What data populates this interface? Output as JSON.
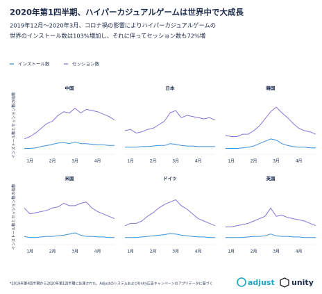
{
  "header": {
    "title": "2020年第1四半期、ハイパーカジュアルゲームは世界中で大成長",
    "subtitle": [
      "2019年12月〜2020年3月、コロナ禍の影響によりハイパーカジュアルゲームの",
      "世界のインストール数は103%増加し、それに伴ってセッション数も72%増"
    ]
  },
  "y_axis_label": "インストール数とセッション数の指数",
  "footnote": "*2019年第4四半期から2020年第1四半期に計測された、AdjustのシステムおよびUnity広告キャンペーンのアプリデータに基づく",
  "logos": [
    "adjust",
    "unity"
  ],
  "chart_data": [
    {
      "type": "line",
      "title": "中国",
      "ylim": [
        0,
        100
      ],
      "categories": [
        null,
        "1月",
        null,
        null,
        null,
        "2月",
        null,
        null,
        null,
        "3月",
        null,
        null,
        null,
        "4月",
        null,
        null,
        null
      ],
      "series": [
        {
          "name": "インストール数",
          "color": "#3a8fd9",
          "values": [
            10,
            10,
            11,
            13,
            15,
            17,
            19,
            20,
            18,
            21,
            18,
            18,
            17,
            16,
            16,
            15,
            15
          ]
        },
        {
          "name": "セッション数",
          "color": "#8a6fd6",
          "values": [
            26,
            30,
            36,
            44,
            52,
            56,
            66,
            72,
            70,
            78,
            70,
            76,
            74,
            72,
            68,
            64,
            58
          ]
        }
      ]
    },
    {
      "type": "line",
      "title": "日本",
      "ylim": [
        0,
        100
      ],
      "categories": [
        null,
        "1月",
        null,
        null,
        null,
        "2月",
        null,
        null,
        null,
        "3月",
        null,
        null,
        null,
        "4月",
        null,
        null,
        null
      ],
      "series": [
        {
          "name": "インストール数",
          "color": "#3a8fd9",
          "values": [
            12,
            12,
            12,
            13,
            13,
            14,
            15,
            15,
            18,
            17,
            15,
            14,
            14,
            13,
            13,
            13,
            13
          ]
        },
        {
          "name": "セッション数",
          "color": "#8a6fd6",
          "values": [
            40,
            42,
            36,
            38,
            42,
            44,
            50,
            56,
            70,
            74,
            62,
            66,
            64,
            62,
            60,
            62,
            58
          ]
        }
      ]
    },
    {
      "type": "line",
      "title": "韓国",
      "ylim": [
        0,
        100
      ],
      "categories": [
        null,
        "1月",
        null,
        null,
        null,
        "2月",
        null,
        null,
        null,
        "3月",
        null,
        null,
        null,
        "4月",
        null,
        null,
        null
      ],
      "series": [
        {
          "name": "インストール数",
          "color": "#3a8fd9",
          "values": [
            10,
            10,
            10,
            11,
            12,
            14,
            18,
            22,
            26,
            24,
            18,
            15,
            13,
            12,
            12,
            11,
            11
          ]
        },
        {
          "name": "セッション数",
          "color": "#8a6fd6",
          "values": [
            32,
            30,
            30,
            34,
            34,
            40,
            48,
            60,
            72,
            80,
            70,
            62,
            52,
            44,
            40,
            38,
            34
          ]
        }
      ]
    },
    {
      "type": "line",
      "title": "米国",
      "ylim": [
        0,
        100
      ],
      "categories": [
        null,
        "1月",
        null,
        null,
        null,
        "2月",
        null,
        null,
        null,
        "3月",
        null,
        null,
        null,
        "4月",
        null,
        null,
        null
      ],
      "series": [
        {
          "name": "インストール数",
          "color": "#3a8fd9",
          "values": [
            14,
            12,
            12,
            13,
            14,
            14,
            15,
            16,
            18,
            20,
            16,
            14,
            14,
            13,
            13,
            12,
            12
          ]
        },
        {
          "name": "セッション数",
          "color": "#8a6fd6",
          "values": [
            62,
            52,
            54,
            56,
            58,
            62,
            64,
            70,
            66,
            66,
            70,
            72,
            62,
            56,
            52,
            48,
            44
          ]
        }
      ]
    },
    {
      "type": "line",
      "title": "ドイツ",
      "ylim": [
        0,
        100
      ],
      "categories": [
        null,
        "1月",
        null,
        null,
        null,
        "2月",
        null,
        null,
        null,
        "3月",
        null,
        null,
        null,
        "4月",
        null,
        null,
        null
      ],
      "series": [
        {
          "name": "インストール数",
          "color": "#3a8fd9",
          "values": [
            12,
            12,
            12,
            13,
            14,
            15,
            16,
            17,
            19,
            18,
            16,
            15,
            14,
            13,
            13,
            12,
            12
          ]
        },
        {
          "name": "セッション数",
          "color": "#8a6fd6",
          "values": [
            32,
            36,
            36,
            40,
            48,
            54,
            62,
            68,
            72,
            76,
            66,
            60,
            52,
            44,
            40,
            36,
            32
          ]
        }
      ]
    },
    {
      "type": "line",
      "title": "英国",
      "ylim": [
        0,
        100
      ],
      "categories": [
        null,
        "1月",
        null,
        null,
        null,
        "2月",
        null,
        null,
        null,
        "3月",
        null,
        null,
        null,
        "4月",
        null,
        null,
        null
      ],
      "series": [
        {
          "name": "インストール数",
          "color": "#3a8fd9",
          "values": [
            12,
            12,
            12,
            12,
            13,
            14,
            14,
            15,
            18,
            15,
            14,
            14,
            13,
            13,
            12,
            12,
            12
          ]
        },
        {
          "name": "セッション数",
          "color": "#8a6fd6",
          "values": [
            30,
            30,
            32,
            34,
            36,
            40,
            44,
            48,
            62,
            48,
            50,
            46,
            44,
            42,
            40,
            36,
            32
          ]
        }
      ]
    }
  ]
}
